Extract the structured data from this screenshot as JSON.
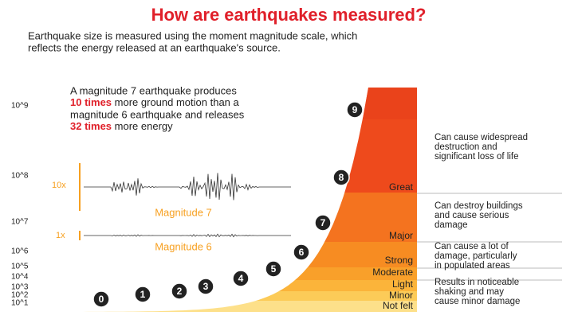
{
  "header": {
    "title": "How are earthquakes measured?",
    "subtitle": [
      "Earthquake size is measured using the moment magnitude scale, which",
      "reflects the energy released at an earthquake's source."
    ]
  },
  "y_axis_labels": [
    "10^9",
    "10^8",
    "10^7",
    "10^6",
    "10^5",
    "10^4",
    "10^3",
    "10^2",
    "10^1"
  ],
  "callout": {
    "line1": "A magnitude 7 earthquake produces",
    "em1": "10 times",
    "line2": " more ground motion than a",
    "line3": "magnitude 6 earthquake and releases",
    "em2": "32 times",
    "line4": " more energy"
  },
  "seismograms": [
    {
      "scale": "10x",
      "label": "Magnitude 7"
    },
    {
      "scale": "1x",
      "label": "Magnitude 6"
    }
  ],
  "markers": [
    "0",
    "1",
    "2",
    "3",
    "4",
    "5",
    "6",
    "7",
    "8",
    "9"
  ],
  "bands": [
    "Great",
    "Major",
    "Strong",
    "Moderate",
    "Light",
    "Minor",
    "Not felt"
  ],
  "descriptions": [
    [
      "Can cause widespread",
      "destruction and",
      "significant loss of life"
    ],
    [
      "Can destroy buildings",
      "and cause serious",
      "damage"
    ],
    [
      "Can cause a lot of",
      "damage, particularly",
      "in populated areas"
    ],
    [
      "Results in noticeable",
      "shaking and may",
      "cause minor damage"
    ]
  ]
}
